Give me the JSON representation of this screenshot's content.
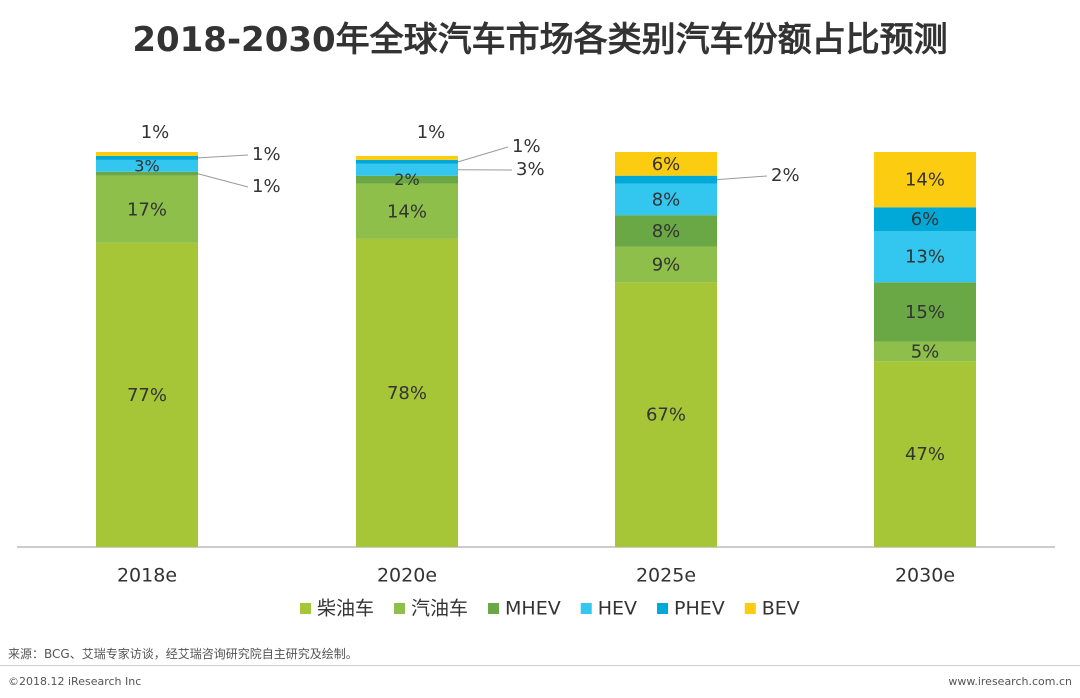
{
  "page": {
    "title": "2018-2030年全球汽车市场各类别汽车份额占比预测",
    "source": "来源：BCG、艾瑞专家访谈，经艾瑞咨询研究院自主研究及绘制。",
    "copyright": "©2018.12 iResearch Inc",
    "site": "www.iresearch.com.cn"
  },
  "chart_data": {
    "type": "bar",
    "stacked": true,
    "categories": [
      "2018e",
      "2020e",
      "2025e",
      "2030e"
    ],
    "ylim": [
      0,
      100
    ],
    "legend_position": "bottom",
    "series": [
      {
        "name": "柴油车",
        "color": "#a6c638",
        "values": [
          77,
          78,
          67,
          47
        ]
      },
      {
        "name": "汽油车",
        "color": "#8ebf4a",
        "values": [
          17,
          14,
          9,
          5
        ]
      },
      {
        "name": "MHEV",
        "color": "#6aa846",
        "values": [
          1,
          2,
          8,
          15
        ]
      },
      {
        "name": "HEV",
        "color": "#33c6ee",
        "values": [
          3,
          3,
          8,
          13
        ]
      },
      {
        "name": "PHEV",
        "color": "#00a9d8",
        "values": [
          1,
          1,
          2,
          6
        ]
      },
      {
        "name": "BEV",
        "color": "#fccc10",
        "values": [
          1,
          1,
          6,
          14
        ]
      }
    ],
    "labels": [
      [
        "77%",
        "17%",
        "1%",
        "3%",
        "1%",
        "1%"
      ],
      [
        "78%",
        "14%",
        "2%",
        "3%",
        "1%",
        "1%"
      ],
      [
        "67%",
        "9%",
        "8%",
        "8%",
        "2%",
        "6%"
      ],
      [
        "47%",
        "5%",
        "15%",
        "13%",
        "6%",
        "14%"
      ]
    ]
  }
}
